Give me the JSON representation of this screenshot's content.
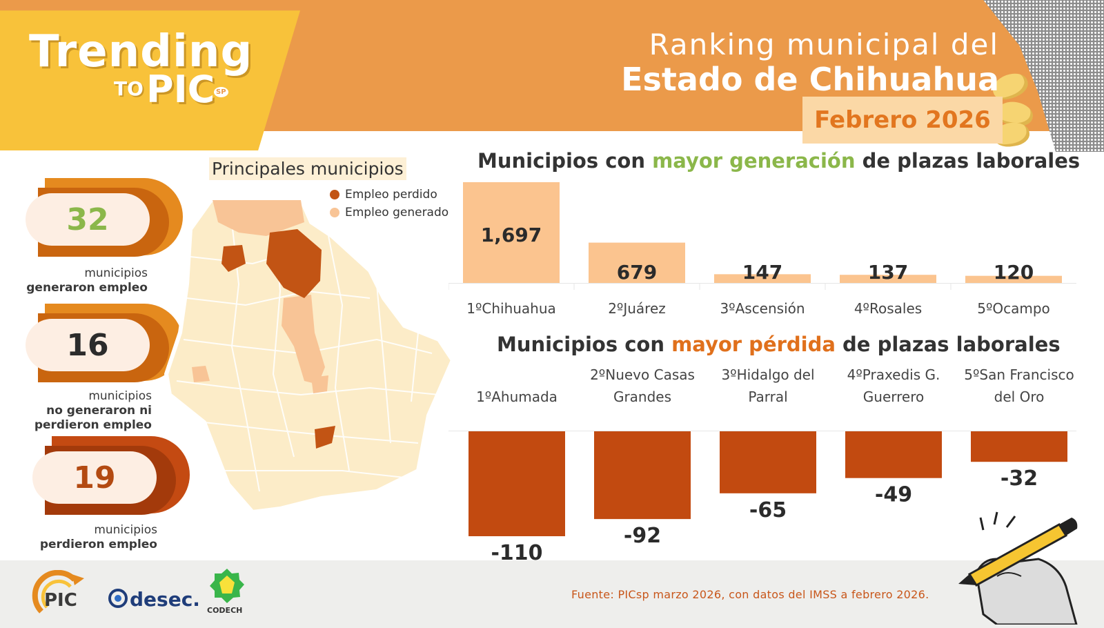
{
  "header": {
    "trending_word": "Trending",
    "to_word": "TO",
    "pic_word": "PIC",
    "sp_word": "SP",
    "title_line1": "Ranking municipal del",
    "title_line2": "Estado de Chihuahua",
    "month": "Febrero 2026"
  },
  "stats": [
    {
      "value": "32",
      "label_line1": "municipios",
      "label_line2": "generaron empleo",
      "color": "#8bb74a"
    },
    {
      "value": "16",
      "label_line1": "municipios",
      "label_line2": "no generaron ni",
      "label_line3": "perdieron empleo",
      "color": "#2b2b2b"
    },
    {
      "value": "19",
      "label_line1": "municipios",
      "label_line2": "perdieron empleo",
      "color": "#b34a12"
    }
  ],
  "map": {
    "title": "Principales municipios",
    "legend": [
      {
        "label": "Empleo perdido",
        "color": "#c25414"
      },
      {
        "label": "Empleo generado",
        "color": "#f8c496"
      }
    ]
  },
  "gain_chart_heading": {
    "part1": "Municipios con ",
    "highlight": "mayor generación",
    "part2": " de plazas laborales"
  },
  "loss_chart_heading": {
    "part1": "Municipios con ",
    "highlight": "mayor pérdida",
    "part2": " de plazas laborales"
  },
  "chart_data": [
    {
      "type": "bar",
      "title": "Municipios con mayor generación de plazas laborales",
      "categories": [
        "1ºChihuahua",
        "2ºJuárez",
        "3ºAscensión",
        "4ºRosales",
        "5ºOcampo"
      ],
      "values": [
        1697,
        679,
        147,
        137,
        120
      ],
      "value_labels": [
        "1,697",
        "679",
        "147",
        "137",
        "120"
      ],
      "bar_color": "#fbc48f",
      "ylim": [
        0,
        1697
      ]
    },
    {
      "type": "bar",
      "title": "Municipios con mayor pérdida de plazas laborales",
      "categories": [
        "1ºAhumada",
        "2ºNuevo Casas Grandes",
        "3ºHidalgo del Parral",
        "4ºPraxedis G. Guerrero",
        "5ºSan Francisco del Oro"
      ],
      "category_lines": [
        [
          "1ºAhumada"
        ],
        [
          "2ºNuevo Casas",
          "Grandes"
        ],
        [
          "3ºHidalgo del",
          "Parral"
        ],
        [
          "4ºPraxedis G.",
          "Guerrero"
        ],
        [
          "5ºSan Francisco",
          "del Oro"
        ]
      ],
      "values": [
        -110,
        -92,
        -65,
        -49,
        -32
      ],
      "value_labels": [
        "-110",
        "-92",
        "-65",
        "-49",
        "-32"
      ],
      "bar_color": "#c24a10",
      "ylim": [
        -110,
        0
      ]
    }
  ],
  "footer": {
    "source": "Fuente: PICsp marzo 2026, con datos del IMSS a febrero 2026.",
    "logo_desec": "desec.",
    "logo_codech": "CODECH",
    "logo_pic": "PIC"
  }
}
